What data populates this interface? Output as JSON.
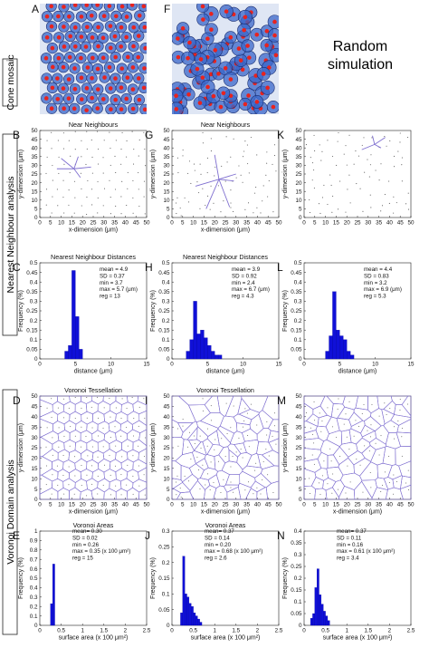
{
  "rows": {
    "cone_mosaic": "Cone mosaic",
    "nearest_neighbour_analysis": "Nearest Neighbour analysis",
    "voronoi_domain_analysis": "Voronoi Domain analysis"
  },
  "random_simulation": [
    "Random",
    "simulation"
  ],
  "colors": {
    "nuclei": "#e8231f",
    "cells": "#3a66c9",
    "background": "#dfe6f4",
    "points": "#555555",
    "lines": "#7f6fd0",
    "bars": "#1010d8"
  },
  "panels": {
    "photos": [
      {
        "letter": "A"
      },
      {
        "letter": "F"
      }
    ],
    "near_neighbours": [
      {
        "letter": "B",
        "title": "Near Neighbours",
        "xlabel": "x-dimension (μm)",
        "ylabel": "y-dimension (μm)",
        "center": [
          16,
          28
        ],
        "spokes": [
          [
            24,
            29
          ],
          [
            10,
            34
          ],
          [
            8,
            28
          ],
          [
            18,
            35
          ],
          [
            19,
            23
          ]
        ]
      },
      {
        "letter": "G",
        "title": "Near Neighbours",
        "xlabel": "x-dimension (μm)",
        "ylabel": "y-dimension (μm)",
        "center": [
          22,
          22
        ],
        "spokes": [
          [
            20,
            36
          ],
          [
            11,
            18
          ],
          [
            30,
            25
          ],
          [
            16,
            5
          ],
          [
            27,
            6
          ],
          [
            29,
            21
          ]
        ]
      },
      {
        "letter": "K",
        "title": "",
        "xlabel": "",
        "ylabel": "",
        "center": [
          33,
          42
        ],
        "spokes": [
          [
            27,
            39
          ],
          [
            38,
            46
          ],
          [
            32,
            47
          ],
          [
            36,
            40
          ]
        ]
      }
    ],
    "nn_histograms": [
      {
        "letter": "C",
        "title": "Nearest Neighbour Distances",
        "xlabel": "distance (μm)",
        "ylabel": "Frequency (%)",
        "stats": [
          "mean = 4.9",
          "SD = 0.37",
          "min = 3.7",
          "max = 5.7 (μm)",
          "reg = 13"
        ]
      },
      {
        "letter": "H",
        "title": "Nearest Neighbour Distances",
        "xlabel": "distance (μm)",
        "ylabel": "Frequency (%)",
        "stats": [
          "mean = 3.9",
          "SD = 0.92",
          "min = 2.4",
          "max = 6.7 (μm)",
          "reg = 4.3"
        ]
      },
      {
        "letter": "L",
        "title": "",
        "xlabel": "distance (μm)",
        "ylabel": "Frequency (%)",
        "stats": [
          "mean = 4.4",
          "SD = 0.83",
          "min = 3.2",
          "max = 6.9 (μm)",
          "reg = 5.3"
        ]
      }
    ],
    "voronoi": [
      {
        "letter": "D",
        "title": "Voronoi Tessellation",
        "xlabel": "x-dimension (μm)",
        "ylabel": "y-dimension (μm)"
      },
      {
        "letter": "I",
        "title": "Voronoi Tessellation",
        "xlabel": "x-dimension (μm)",
        "ylabel": "y-dimension (μm)"
      },
      {
        "letter": "M",
        "title": "",
        "xlabel": "x-dimension (μm)",
        "ylabel": "y-dimension (μm)"
      }
    ],
    "area_histograms": [
      {
        "letter": "E",
        "title": "Voronoi Areas",
        "xlabel": "surface area (x 100 μm²)",
        "ylabel": "Frequency (%)",
        "stats": [
          "mean= 0.30",
          "SD = 0.02",
          "min = 0.26",
          "max = 0.35 (x 100 μm²)",
          "reg = 15"
        ]
      },
      {
        "letter": "J",
        "title": "Voronoi Areas",
        "xlabel": "surface area (x 100 μm²)",
        "ylabel": "Frequency (%)",
        "stats": [
          "mean= 0.37",
          "SD = 0.14",
          "min = 0.20",
          "max = 0.68 (x 100 μm²)",
          "reg = 2.6"
        ]
      },
      {
        "letter": "N",
        "title": "",
        "xlabel": "surface area (x 100 μm²)",
        "ylabel": "Frequency (%)",
        "stats": [
          "mean= 0.37",
          "SD = 0.11",
          "min = 0.16",
          "max = 0.61 (x 100 μm²)",
          "reg = 3.4"
        ]
      }
    ]
  },
  "chart_data": [
    {
      "type": "scatter",
      "panel": "B",
      "xlim": [
        0,
        50
      ],
      "ylim": [
        0,
        50
      ],
      "xticks": [
        0,
        5,
        10,
        15,
        20,
        25,
        30,
        35,
        40,
        45,
        50
      ],
      "yticks": [
        0,
        5,
        10,
        15,
        20,
        25,
        30,
        35,
        40,
        45,
        50
      ]
    },
    {
      "type": "scatter",
      "panel": "G",
      "xlim": [
        0,
        50
      ],
      "ylim": [
        0,
        50
      ],
      "xticks": [
        0,
        5,
        10,
        15,
        20,
        25,
        30,
        35,
        40,
        45,
        50
      ],
      "yticks": [
        0,
        5,
        10,
        15,
        20,
        25,
        30,
        35,
        40,
        45,
        50
      ]
    },
    {
      "type": "scatter",
      "panel": "K",
      "xlim": [
        0,
        50
      ],
      "ylim": [
        0,
        50
      ],
      "xticks": [
        0,
        5,
        10,
        15,
        20,
        25,
        30,
        35,
        40,
        45,
        50
      ],
      "yticks": [
        0,
        5,
        10,
        15,
        20,
        25,
        30,
        35,
        40,
        45,
        50
      ]
    },
    {
      "type": "bar",
      "panel": "C",
      "xlim": [
        0,
        15
      ],
      "ylim": [
        0,
        0.5
      ],
      "xticks": [
        0,
        5,
        10,
        15
      ],
      "yticks": [
        0,
        0.05,
        0.1,
        0.15,
        0.2,
        0.25,
        0.3,
        0.35,
        0.4,
        0.45,
        0.5
      ],
      "bin_width": 0.5,
      "x": [
        3.75,
        4.25,
        4.75,
        5.25,
        5.75
      ],
      "values": [
        0.04,
        0.07,
        0.46,
        0.22,
        0.05
      ]
    },
    {
      "type": "bar",
      "panel": "H",
      "xlim": [
        0,
        15
      ],
      "ylim": [
        0,
        0.5
      ],
      "xticks": [
        0,
        5,
        10,
        15
      ],
      "yticks": [
        0,
        0.05,
        0.1,
        0.15,
        0.2,
        0.25,
        0.3,
        0.35,
        0.4,
        0.45,
        0.5
      ],
      "bin_width": 0.5,
      "x": [
        2.25,
        2.75,
        3.25,
        3.75,
        4.25,
        4.75,
        5.25,
        5.75,
        6.25,
        6.75
      ],
      "values": [
        0.04,
        0.1,
        0.3,
        0.13,
        0.15,
        0.11,
        0.07,
        0.04,
        0.02,
        0.02
      ]
    },
    {
      "type": "bar",
      "panel": "L",
      "xlim": [
        0,
        15
      ],
      "ylim": [
        0,
        0.5
      ],
      "xticks": [
        0,
        5,
        10,
        15
      ],
      "yticks": [
        0,
        0.05,
        0.1,
        0.15,
        0.2,
        0.25,
        0.3,
        0.35,
        0.4,
        0.45,
        0.5
      ],
      "bin_width": 0.5,
      "x": [
        3.25,
        3.75,
        4.25,
        4.75,
        5.25,
        5.75,
        6.25,
        6.75
      ],
      "values": [
        0.04,
        0.12,
        0.35,
        0.15,
        0.12,
        0.1,
        0.04,
        0.02
      ]
    },
    {
      "type": "scatter",
      "panel": "D",
      "xlim": [
        0,
        50
      ],
      "ylim": [
        0,
        50
      ],
      "xticks": [
        0,
        5,
        10,
        15,
        20,
        25,
        30,
        35,
        40,
        45,
        50
      ],
      "yticks": [
        0,
        5,
        10,
        15,
        20,
        25,
        30,
        35,
        40,
        45,
        50
      ]
    },
    {
      "type": "scatter",
      "panel": "I",
      "xlim": [
        0,
        50
      ],
      "ylim": [
        0,
        50
      ],
      "xticks": [
        0,
        5,
        10,
        15,
        20,
        25,
        30,
        35,
        40,
        45,
        50
      ],
      "yticks": [
        0,
        5,
        10,
        15,
        20,
        25,
        30,
        35,
        40,
        45,
        50
      ]
    },
    {
      "type": "scatter",
      "panel": "M",
      "xlim": [
        0,
        50
      ],
      "ylim": [
        0,
        50
      ],
      "xticks": [
        0,
        5,
        10,
        15,
        20,
        25,
        30,
        35,
        40,
        45,
        50
      ],
      "yticks": [
        0,
        5,
        10,
        15,
        20,
        25,
        30,
        35,
        40,
        45,
        50
      ]
    },
    {
      "type": "bar",
      "panel": "E",
      "xlim": [
        0,
        2.5
      ],
      "ylim": [
        0,
        1
      ],
      "xticks": [
        0,
        0.5,
        1,
        1.5,
        2,
        2.5
      ],
      "yticks": [
        0,
        0.1,
        0.2,
        0.3,
        0.4,
        0.5,
        0.6,
        0.7,
        0.8,
        0.9,
        1
      ],
      "bin_width": 0.05,
      "x": [
        0.275,
        0.325
      ],
      "values": [
        0.23,
        0.65
      ]
    },
    {
      "type": "bar",
      "panel": "J",
      "xlim": [
        0,
        2.5
      ],
      "ylim": [
        0,
        0.3
      ],
      "xticks": [
        0,
        0.5,
        1,
        1.5,
        2,
        2.5
      ],
      "yticks": [
        0,
        0.05,
        0.1,
        0.15,
        0.2,
        0.25,
        0.3
      ],
      "bin_width": 0.05,
      "x": [
        0.225,
        0.275,
        0.325,
        0.375,
        0.425,
        0.475,
        0.525,
        0.575,
        0.625,
        0.675
      ],
      "values": [
        0.04,
        0.22,
        0.1,
        0.09,
        0.07,
        0.06,
        0.04,
        0.03,
        0.02,
        0.01
      ]
    },
    {
      "type": "bar",
      "panel": "N",
      "xlim": [
        0,
        2.5
      ],
      "ylim": [
        0,
        0.4
      ],
      "xticks": [
        0,
        0.5,
        1,
        1.5,
        2,
        2.5
      ],
      "yticks": [
        0,
        0.05,
        0.1,
        0.15,
        0.2,
        0.25,
        0.3,
        0.35,
        0.4
      ],
      "bin_width": 0.05,
      "x": [
        0.175,
        0.225,
        0.275,
        0.325,
        0.375,
        0.425,
        0.475,
        0.525,
        0.575
      ],
      "values": [
        0.03,
        0.05,
        0.16,
        0.24,
        0.13,
        0.09,
        0.06,
        0.04,
        0.02
      ]
    }
  ]
}
